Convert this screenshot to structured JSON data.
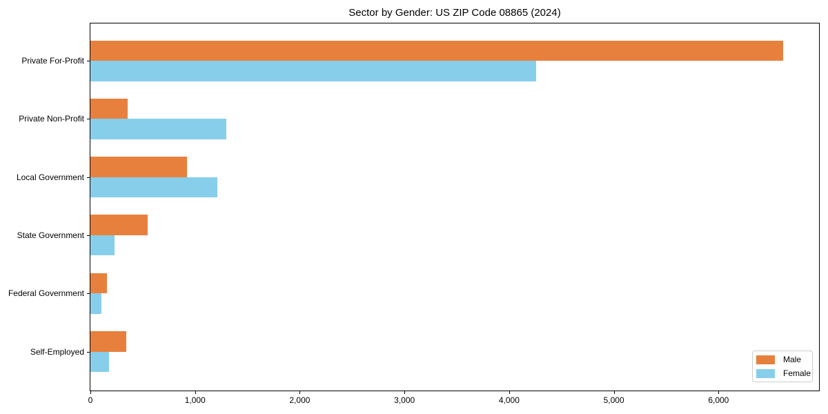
{
  "title": "Sector by Gender: US ZIP Code 08865 (2024)",
  "colors": {
    "male": "#e8803d",
    "female": "#87ceeb",
    "spine": "#000000",
    "legend_border": "#cccccc",
    "background": "#ffffff",
    "text": "#000000"
  },
  "legend": {
    "male_label": "Male",
    "female_label": "Female",
    "position": "lower right"
  },
  "chart_data": {
    "type": "bar",
    "orientation": "horizontal",
    "title": "Sector by Gender: US ZIP Code 08865 (2024)",
    "categories": [
      "Private For-Profit",
      "Private Non-Profit",
      "Local Government",
      "State Government",
      "Federal Government",
      "Self-Employed"
    ],
    "series": [
      {
        "name": "Male",
        "color": "#e8803d",
        "values": [
          6620,
          355,
          920,
          550,
          160,
          345
        ]
      },
      {
        "name": "Female",
        "color": "#87ceeb",
        "values": [
          4255,
          1300,
          1215,
          230,
          105,
          175
        ]
      }
    ],
    "xlabel": "",
    "ylabel": "",
    "xlim": [
      0,
      6960
    ],
    "xticks": {
      "values": [
        0,
        1000,
        2000,
        3000,
        4000,
        5000,
        6000
      ],
      "labels": [
        "0",
        "1,000",
        "2,000",
        "3,000",
        "4,000",
        "5,000",
        "6,000"
      ]
    },
    "grid": false,
    "legend_position": "lower right"
  }
}
